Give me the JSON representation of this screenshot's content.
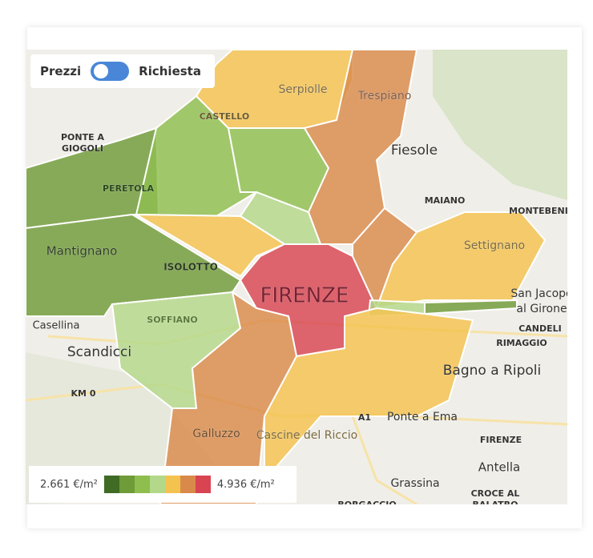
{
  "toggle": {
    "left_label": "Prezzi",
    "right_label": "Richiesta"
  },
  "legend": {
    "min_label": "2.661 €/m²",
    "max_label": "4.936 €/m²",
    "colors": [
      "#3f6b24",
      "#6f9b38",
      "#8fbe4f",
      "#b3d88a",
      "#f4c24e",
      "#d98a4a",
      "#d84452"
    ]
  },
  "places": [
    "Serpiolle",
    "Trespiano",
    "CASTELLO",
    "PONTE A",
    "GIOGOLI",
    "Fiesole",
    "PERETOLA",
    "MAIANO",
    "MONTEBENI",
    "Settignano",
    "Mantignano",
    "ISOLOTTO",
    "FIRENZE",
    "San Jacopo",
    "al Girone",
    "Casellina",
    "SOFFIANO",
    "CANDELI",
    "Scandicci",
    "RIMAGGIO",
    "Bagno a Ripoli",
    "KM 0",
    "Galluzzo",
    "Cascine del Riccio",
    "Ponte a Ema",
    "A1",
    "FIRENZE",
    "Antella",
    "Grassina",
    "CROCE AL",
    "BALATRO",
    "BORGACCIO"
  ]
}
